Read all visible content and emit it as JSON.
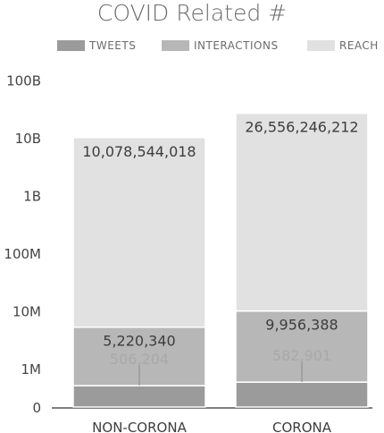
{
  "chart_data": {
    "type": "bar",
    "stacked": true,
    "title": "COVID Related #",
    "scale": "log",
    "categories": [
      "NON-CORONA",
      "CORONA"
    ],
    "series": [
      {
        "name": "TWEETS",
        "color": "#9b9b9b",
        "values": [
          506204,
          582901
        ]
      },
      {
        "name": "INTERACTIONS",
        "color": "#b7b7b7",
        "values": [
          5220340,
          9956388
        ]
      },
      {
        "name": "REACH",
        "color": "#e1e1e1",
        "values": [
          10078544018,
          26556246212
        ]
      }
    ],
    "data_labels": [
      [
        "506,204",
        "582,901"
      ],
      [
        "5,220,340",
        "9,956,388"
      ],
      [
        "10,078,544,018",
        "26,556,246,212"
      ]
    ],
    "y_ticks": [
      {
        "value": 0,
        "label": "0"
      },
      {
        "value": 1000000,
        "label": "1M"
      },
      {
        "value": 10000000,
        "label": "10M"
      },
      {
        "value": 100000000,
        "label": "100M"
      },
      {
        "value": 1000000000,
        "label": "1B"
      },
      {
        "value": 10000000000,
        "label": "10B"
      },
      {
        "value": 100000000000,
        "label": "100B"
      }
    ],
    "legend_position": "top",
    "grid": false
  }
}
